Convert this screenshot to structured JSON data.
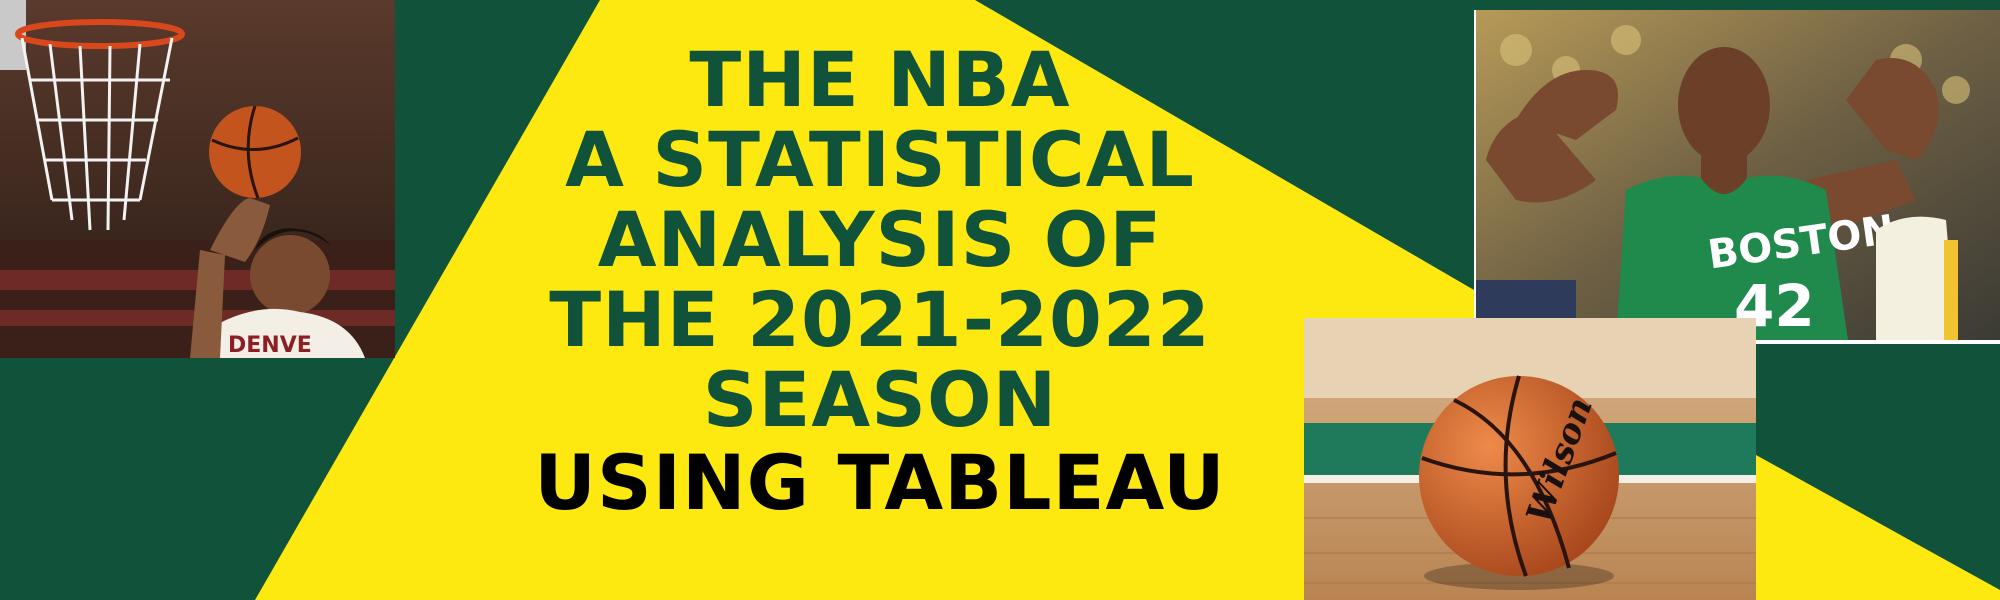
{
  "banner": {
    "title_lines": [
      "THE NBA",
      "A STATISTICAL",
      "ANALYSIS OF",
      "THE 2021-2022",
      "SEASON"
    ],
    "subtitle": "USING TABLEAU",
    "colors": {
      "background_green": "#11523a",
      "accent_yellow": "#fde910",
      "title_text": "#11523a",
      "subtitle_text": "#000000"
    }
  },
  "photos": {
    "dunk": {
      "icon": "basketball-dunk-photo",
      "jersey_text": "DENVE"
    },
    "player": {
      "icon": "boston-player-photo",
      "jersey_team": "BOSTON",
      "jersey_number": "42"
    },
    "ball": {
      "icon": "basketball-on-court-photo",
      "ball_brand": "Wilson"
    }
  }
}
